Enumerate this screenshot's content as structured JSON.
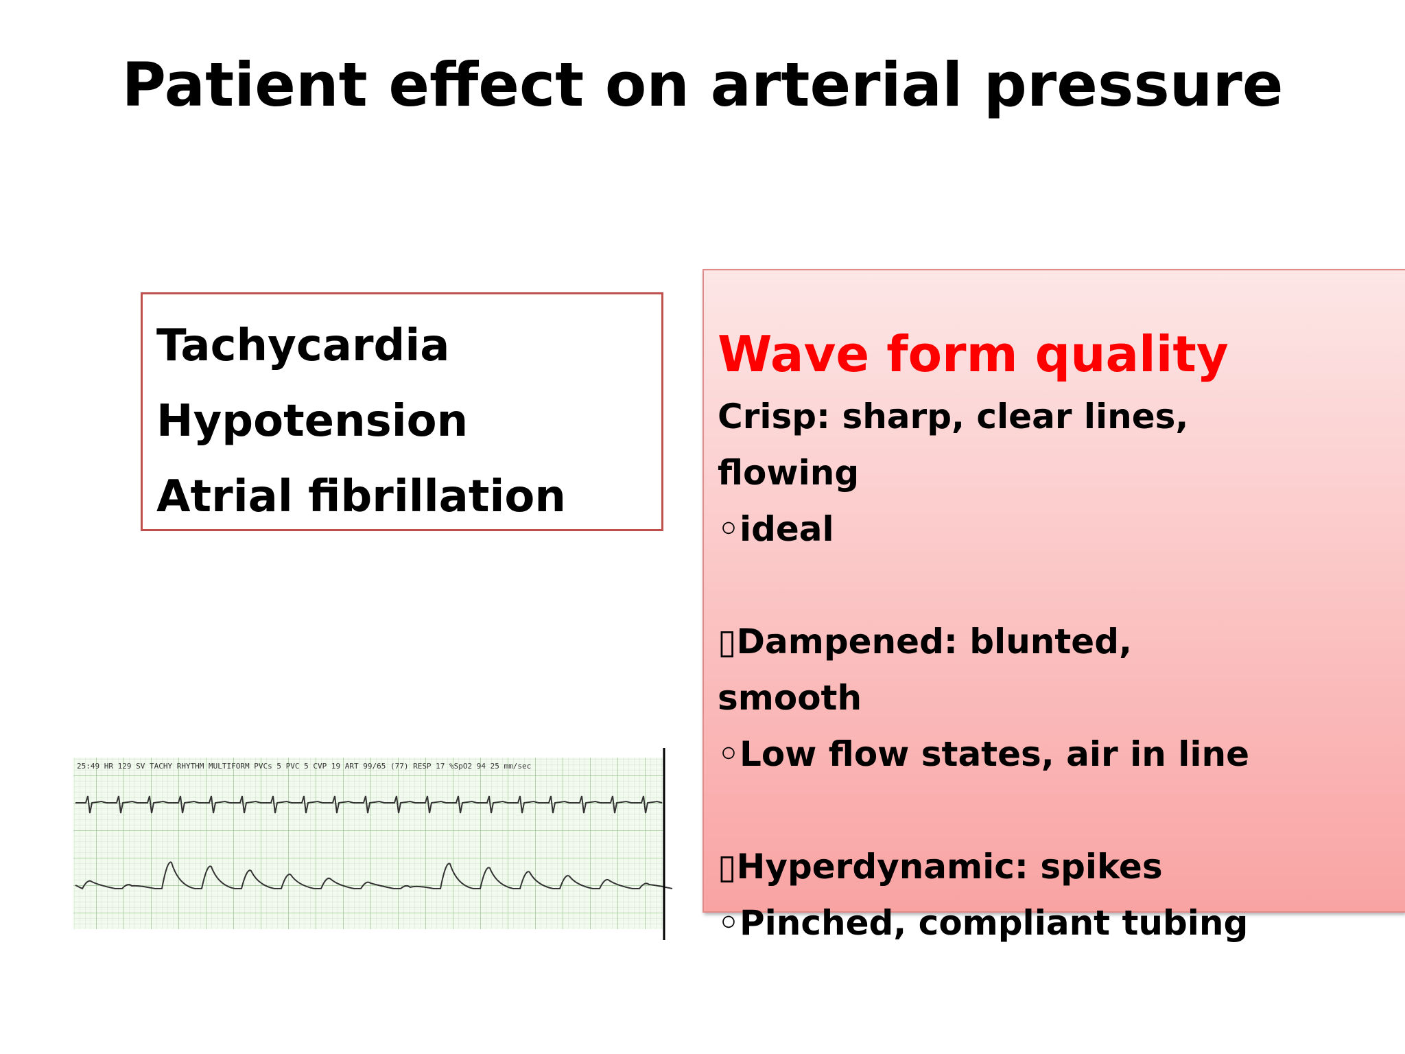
{
  "title": "Patient effect on arterial pressure",
  "left_box": {
    "lines": [
      "Tachycardia",
      "Hypotension",
      "Atrial fibrillation"
    ]
  },
  "right_box": {
    "heading": "Wave form quality",
    "groups": [
      [
        "Crisp: sharp, clear lines, flowing",
        "◦ideal"
      ],
      [
        "▯Dampened: blunted, smooth",
        "◦Low flow states, air in line"
      ],
      [
        "▯Hyperdynamic: spikes",
        "◦Pinched, compliant tubing"
      ]
    ]
  },
  "ecg_strip": {
    "header": "25:49  HR 129  SV TACHY RHYTHM  MULTIFORM PVCs 5  PVC 5  CVP 19  ART 99/65 (77)  RESP 17  %SpO2 94  25 mm/sec"
  }
}
